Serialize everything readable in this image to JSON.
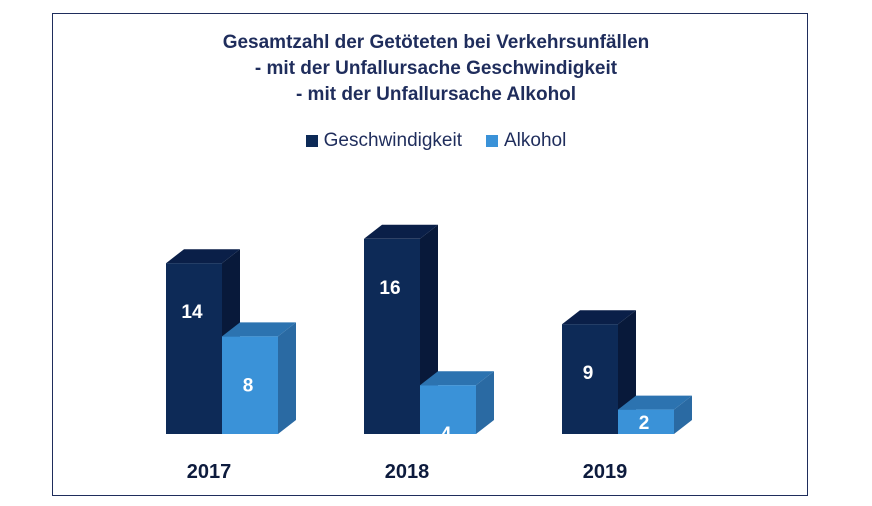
{
  "title_lines": [
    "Gesamtzahl der Getöteten bei Verkehrsunfällen",
    "- mit der Unfallursache Geschwindigkeit",
    "- mit der Unfallursache Alkohol"
  ],
  "colors": {
    "geschwindigkeit": "#0d2a57",
    "alkohol": "#3a92d8",
    "text": "#1f2d5c"
  },
  "chart_data": {
    "type": "bar",
    "categories": [
      "2017",
      "2018",
      "2019"
    ],
    "series": [
      {
        "name": "Geschwindigkeit",
        "values": [
          14,
          16,
          9
        ]
      },
      {
        "name": "Alkohol",
        "values": [
          8,
          4,
          2
        ]
      }
    ],
    "legend_position": "top-center",
    "grid": false,
    "three_d": true
  }
}
